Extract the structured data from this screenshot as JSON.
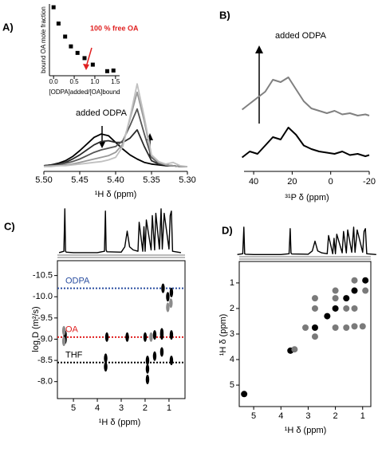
{
  "chart_data": [
    {
      "type": "scatter",
      "xlabel": "[ODPA]added/[OA]bound",
      "ylabel": "bound OA mole fraction",
      "x": [
        0.0,
        0.12,
        0.28,
        0.42,
        0.58,
        0.75,
        0.95,
        1.3,
        1.45
      ],
      "values": [
        1.0,
        0.75,
        0.55,
        0.4,
        0.3,
        0.22,
        0.12,
        0.02,
        0.03
      ],
      "color": "#000000",
      "xlim": [
        -0.1,
        1.6
      ],
      "ylim": [
        -0.05,
        1.05
      ],
      "xticks": [
        {
          "value": 0,
          "label": "0.0"
        },
        0.5,
        {
          "value": 1,
          "label": "1.0"
        },
        1.5
      ],
      "annotation": "100 % free OA",
      "annotation_color": "#e02020"
    },
    {
      "type": "line",
      "panel": "A)",
      "xlabel": "¹H δ (ppm)",
      "annotation": "added ODPA",
      "x": [
        5.5,
        5.49,
        5.48,
        5.47,
        5.46,
        5.45,
        5.44,
        5.43,
        5.42,
        5.41,
        5.4,
        5.39,
        5.38,
        5.37,
        5.36,
        5.35,
        5.34,
        5.33,
        5.32,
        5.31,
        5.3
      ],
      "series": [
        {
          "color": "#000000",
          "values": [
            2,
            3,
            5,
            8,
            13,
            20,
            28,
            36,
            40,
            38,
            30,
            22,
            15,
            10,
            6,
            4,
            3,
            2,
            2,
            1,
            1
          ]
        },
        {
          "color": "#2a2a2a",
          "values": [
            2,
            3,
            4,
            6,
            10,
            15,
            21,
            27,
            31,
            32,
            30,
            30,
            35,
            45,
            25,
            8,
            4,
            3,
            2,
            1,
            1
          ]
        },
        {
          "color": "#555555",
          "values": [
            2,
            2,
            3,
            5,
            7,
            10,
            14,
            18,
            21,
            23,
            25,
            32,
            50,
            70,
            40,
            12,
            5,
            3,
            2,
            1,
            1
          ]
        },
        {
          "color": "#999999",
          "values": [
            1,
            2,
            2,
            3,
            4,
            6,
            8,
            10,
            12,
            14,
            18,
            28,
            58,
            90,
            55,
            14,
            6,
            3,
            2,
            1,
            1
          ]
        },
        {
          "color": "#c0c0c0",
          "values": [
            1,
            1,
            2,
            2,
            3,
            4,
            5,
            6,
            7,
            9,
            12,
            25,
            60,
            100,
            60,
            15,
            7,
            4,
            6,
            2,
            1
          ]
        }
      ],
      "xlim": [
        5.5,
        5.3
      ],
      "ylim": [
        0,
        105
      ],
      "xticks": [
        {
          "value": 5.5,
          "label": "5.50"
        },
        5.45,
        {
          "value": 5.4,
          "label": "5.40"
        },
        5.35,
        {
          "value": 5.3,
          "label": "5.30"
        }
      ]
    },
    {
      "type": "line",
      "panel": "B)",
      "xlabel": "³¹P δ (ppm)",
      "annotation": "added ODPA",
      "x": [
        46,
        42,
        38,
        34,
        30,
        26,
        22,
        18,
        14,
        10,
        6,
        2,
        -2,
        -6,
        -10,
        -14,
        -18,
        -20
      ],
      "series": [
        {
          "color": "#808080",
          "values": [
            45,
            50,
            55,
            60,
            70,
            68,
            72,
            62,
            52,
            46,
            44,
            42,
            44,
            41,
            42,
            40,
            41,
            40
          ]
        },
        {
          "color": "#000000",
          "values": [
            5,
            10,
            8,
            15,
            22,
            20,
            30,
            24,
            15,
            12,
            10,
            9,
            8,
            10,
            7,
            8,
            6,
            7
          ]
        }
      ],
      "xlim": [
        45,
        -20
      ],
      "ylim": [
        0,
        80
      ],
      "xticks": [
        40,
        20,
        0,
        -20
      ]
    },
    {
      "type": "line",
      "x": [
        5.6,
        5.4,
        5.36,
        5.33,
        5.3,
        5.0,
        4.0,
        3.7,
        3.66,
        3.63,
        3.6,
        3.0,
        2.85,
        2.75,
        2.65,
        2.5,
        2.3,
        2.25,
        2.1,
        2.05,
        2.0,
        1.95,
        1.75,
        1.7,
        1.6,
        1.55,
        1.4,
        1.33,
        1.28,
        1.2,
        1.0,
        0.95,
        0.9,
        0.85,
        0.5
      ],
      "series": [
        {
          "color": "#000000",
          "values": [
            2,
            5,
            100,
            5,
            3,
            2,
            2,
            5,
            95,
            8,
            4,
            3,
            15,
            50,
            15,
            8,
            5,
            70,
            5,
            60,
            5,
            75,
            8,
            85,
            8,
            90,
            10,
            100,
            10,
            90,
            10,
            85,
            95,
            5,
            2
          ]
        }
      ],
      "xlim": [
        5.67,
        0.33
      ],
      "ylim": [
        0,
        100
      ]
    },
    {
      "type": "scatter",
      "panel": "C)",
      "xlabel": "¹H δ (ppm)",
      "ylabel": "log D (m²/s)",
      "series": [
        {
          "color": "#000000",
          "x": [
            5.35,
            5.35,
            3.65,
            3.65,
            3.6,
            2.75,
            2.0,
            1.9,
            1.9,
            1.9,
            1.6,
            1.6,
            1.3,
            1.3,
            1.3,
            1.25,
            1.05,
            0.9,
            0.9,
            0.9
          ],
          "values": [
            -9.0,
            -9.1,
            -8.55,
            -8.35,
            -9.05,
            -9.05,
            -9.05,
            -8.5,
            -8.3,
            -8.05,
            -9.1,
            -8.6,
            -9.1,
            -9.15,
            -8.7,
            -10.2,
            -10.0,
            -9.1,
            -10.1,
            -8.5
          ]
        },
        {
          "color": "#8c8c8c",
          "x": [
            5.4,
            5.4,
            1.05,
            0.92,
            1.75
          ],
          "values": [
            -9.2,
            -8.95,
            -9.75,
            -9.85,
            -9.05
          ]
        }
      ],
      "reference_lines": [
        {
          "label": "ODPA",
          "value": -10.2,
          "color": "#2a4ea0"
        },
        {
          "label": "OA",
          "value": -9.05,
          "color": "#e02020"
        },
        {
          "label": "THF",
          "value": -8.45,
          "color": "#000000"
        }
      ],
      "xlim": [
        5.67,
        0.33
      ],
      "ylim": [
        -7.6,
        -10.85
      ],
      "xticks": [
        5,
        4,
        3,
        2,
        1
      ],
      "yticks": [
        -10.5,
        {
          "value": -10,
          "label": "-10.0"
        },
        -9.5,
        {
          "value": -9,
          "label": "-9.0"
        },
        -8.5,
        {
          "value": -8,
          "label": "-8.0"
        }
      ]
    },
    {
      "type": "line",
      "x": [
        5.6,
        5.4,
        5.36,
        5.33,
        5.3,
        5.0,
        4.0,
        3.7,
        3.66,
        3.63,
        3.6,
        3.0,
        2.85,
        2.75,
        2.65,
        2.5,
        2.3,
        2.25,
        2.1,
        2.05,
        2.0,
        1.95,
        1.75,
        1.7,
        1.6,
        1.55,
        1.4,
        1.33,
        1.28,
        1.2,
        1.0,
        0.95,
        0.9,
        0.85,
        0.5
      ],
      "series": [
        {
          "color": "#000000",
          "values": [
            2,
            5,
            100,
            5,
            3,
            2,
            2,
            5,
            95,
            8,
            4,
            3,
            15,
            50,
            15,
            8,
            5,
            70,
            5,
            60,
            5,
            75,
            8,
            85,
            8,
            90,
            10,
            100,
            10,
            90,
            10,
            85,
            95,
            5,
            2
          ]
        }
      ],
      "xlim": [
        5.53,
        0.7
      ],
      "ylim": [
        0,
        100
      ]
    },
    {
      "type": "scatter",
      "panel": "D)",
      "xlabel": "¹H δ (ppm)",
      "ylabel": "¹H δ (ppm)",
      "series": [
        {
          "color": "#000000",
          "x": [
            5.35,
            3.65,
            2.75,
            2.3,
            2.0,
            1.6,
            1.3,
            0.9
          ],
          "values": [
            5.35,
            3.65,
            2.75,
            2.3,
            2.0,
            1.6,
            1.3,
            0.9
          ]
        },
        {
          "color": "#7a7a7a",
          "x": [
            2.75,
            1.6,
            2.0,
            1.3,
            2.0,
            2.75,
            0.9,
            1.3,
            2.75,
            3.1,
            2.0,
            1.6,
            1.3,
            1.0,
            3.5
          ],
          "values": [
            1.6,
            2.75,
            1.3,
            2.0,
            2.75,
            2.0,
            1.3,
            0.9,
            3.1,
            2.75,
            1.6,
            2.0,
            2.7,
            2.7,
            3.6
          ]
        }
      ],
      "xlim": [
        5.53,
        0.7
      ],
      "ylim": [
        5.84,
        0.16
      ],
      "xticks": [
        5,
        4,
        3,
        2,
        1
      ],
      "yticks": [
        1,
        2,
        3,
        4,
        5
      ]
    }
  ]
}
